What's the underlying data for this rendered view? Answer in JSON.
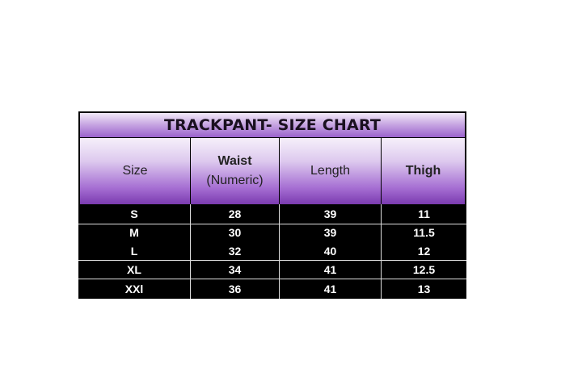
{
  "title": "TRACKPANT- SIZE CHART",
  "columns": [
    "Size",
    "Waist (Numeric)",
    "Length",
    "Thigh"
  ],
  "columns_lines": [
    [
      "Size"
    ],
    [
      "Waist",
      "(Numeric)"
    ],
    [
      "Length"
    ],
    [
      "Thigh"
    ]
  ],
  "rows": [
    [
      "S",
      "28",
      "39",
      "11"
    ],
    [
      "M",
      "30",
      "39",
      "11.5"
    ],
    [
      "L",
      "32",
      "40",
      "12"
    ],
    [
      "XL",
      "34",
      "41",
      "12.5"
    ],
    [
      "XXl",
      "36",
      "41",
      "13"
    ]
  ],
  "colors": {
    "header_purple": "#7b3bb0",
    "body_background": "#000000",
    "text_light": "#ffffff"
  }
}
